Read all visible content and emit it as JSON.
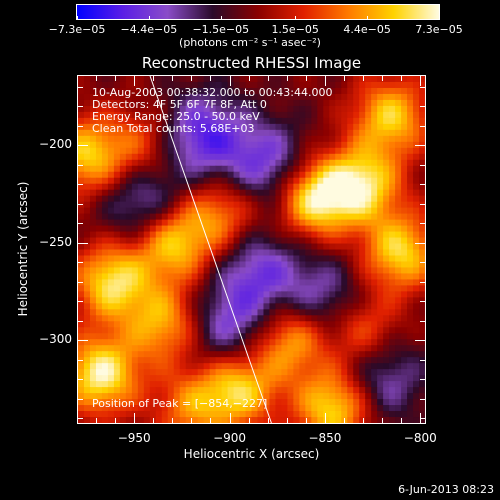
{
  "chart_data": {
    "type": "heatmap",
    "title": "Reconstructed RHESSI Image",
    "xlabel": "Heliocentric X (arcsec)",
    "ylabel": "Heliocentric Y (arcsec)",
    "xlim": [
      -980,
      -797
    ],
    "ylim": [
      -343,
      -164
    ],
    "x_ticks": [
      {
        "value": -950,
        "label": "−950"
      },
      {
        "value": -900,
        "label": "−900"
      },
      {
        "value": -850,
        "label": "−850"
      },
      {
        "value": -800,
        "label": "−800"
      }
    ],
    "y_ticks": [
      {
        "value": -200,
        "label": "−200"
      },
      {
        "value": -250,
        "label": "−250"
      },
      {
        "value": -300,
        "label": "−300"
      }
    ],
    "grid": false,
    "colorbar": {
      "range": [
        -7.3e-05,
        7.3e-05
      ],
      "ticks": [
        {
          "value": -7.3e-05,
          "label": "−7.3e−05"
        },
        {
          "value": -4.4e-05,
          "label": "−4.4e−05"
        },
        {
          "value": -1.5e-05,
          "label": "−1.5e−05"
        },
        {
          "value": 1.5e-05,
          "label": "1.5e−05"
        },
        {
          "value": 4.4e-05,
          "label": "4.4e−05"
        },
        {
          "value": 7.3e-05,
          "label": "7.3e−05"
        }
      ],
      "units_label": "(photons cm⁻² s⁻¹ asec⁻²)",
      "colors": [
        "#0000ff",
        "#5a1ee6",
        "#8a4cc8",
        "#2a0a2a",
        "#8a0000",
        "#e02000",
        "#ff7a00",
        "#ffd200",
        "#fffbe0"
      ]
    },
    "annotations": [
      "10-Aug-2003 00:38:32.000 to 00:43:44.000",
      "Detectors: 4F 5F 6F 7F 8F, Att 0",
      "Energy Range: 25.0 - 50.0 keV",
      "Clean    Total counts: 5.68E+03"
    ],
    "peak_label": "Position of Peak = [−854,−227]",
    "peak_position": [
      -854,
      -227
    ],
    "limb_line": [
      [
        -942,
        -164
      ],
      [
        -878,
        -343
      ]
    ],
    "limb_color": "#ffffff",
    "bright_sources": [
      {
        "x": -968,
        "y": -318,
        "amp": 1.0
      },
      {
        "x": -962,
        "y": -270,
        "amp": 0.9
      },
      {
        "x": -930,
        "y": -250,
        "amp": 0.85
      },
      {
        "x": -975,
        "y": -205,
        "amp": 0.8
      },
      {
        "x": -935,
        "y": -292,
        "amp": 0.7
      },
      {
        "x": -905,
        "y": -235,
        "amp": 0.6
      },
      {
        "x": -868,
        "y": -300,
        "amp": 0.75
      },
      {
        "x": -845,
        "y": -335,
        "amp": 0.9
      },
      {
        "x": -855,
        "y": -227,
        "amp": 1.0
      },
      {
        "x": -830,
        "y": -220,
        "amp": 0.9
      },
      {
        "x": -815,
        "y": -185,
        "amp": 0.8
      },
      {
        "x": -810,
        "y": -255,
        "amp": 0.85
      },
      {
        "x": -895,
        "y": -325,
        "amp": 0.85
      },
      {
        "x": -830,
        "y": -295,
        "amp": 0.55
      },
      {
        "x": -920,
        "y": -335,
        "amp": 0.55
      },
      {
        "x": -945,
        "y": -200,
        "amp": 0.45
      }
    ],
    "negative_regions": [
      {
        "x": -915,
        "y": -195,
        "amp": 0.7
      },
      {
        "x": -880,
        "y": -210,
        "amp": 0.6
      },
      {
        "x": -885,
        "y": -265,
        "amp": 0.55
      },
      {
        "x": -850,
        "y": -280,
        "amp": 0.5
      },
      {
        "x": -945,
        "y": -230,
        "amp": 0.55
      },
      {
        "x": -900,
        "y": -295,
        "amp": 0.55
      },
      {
        "x": -820,
        "y": -320,
        "amp": 0.5
      }
    ]
  },
  "footer": {
    "date_stamp": "6-Jun-2013 08:23"
  }
}
